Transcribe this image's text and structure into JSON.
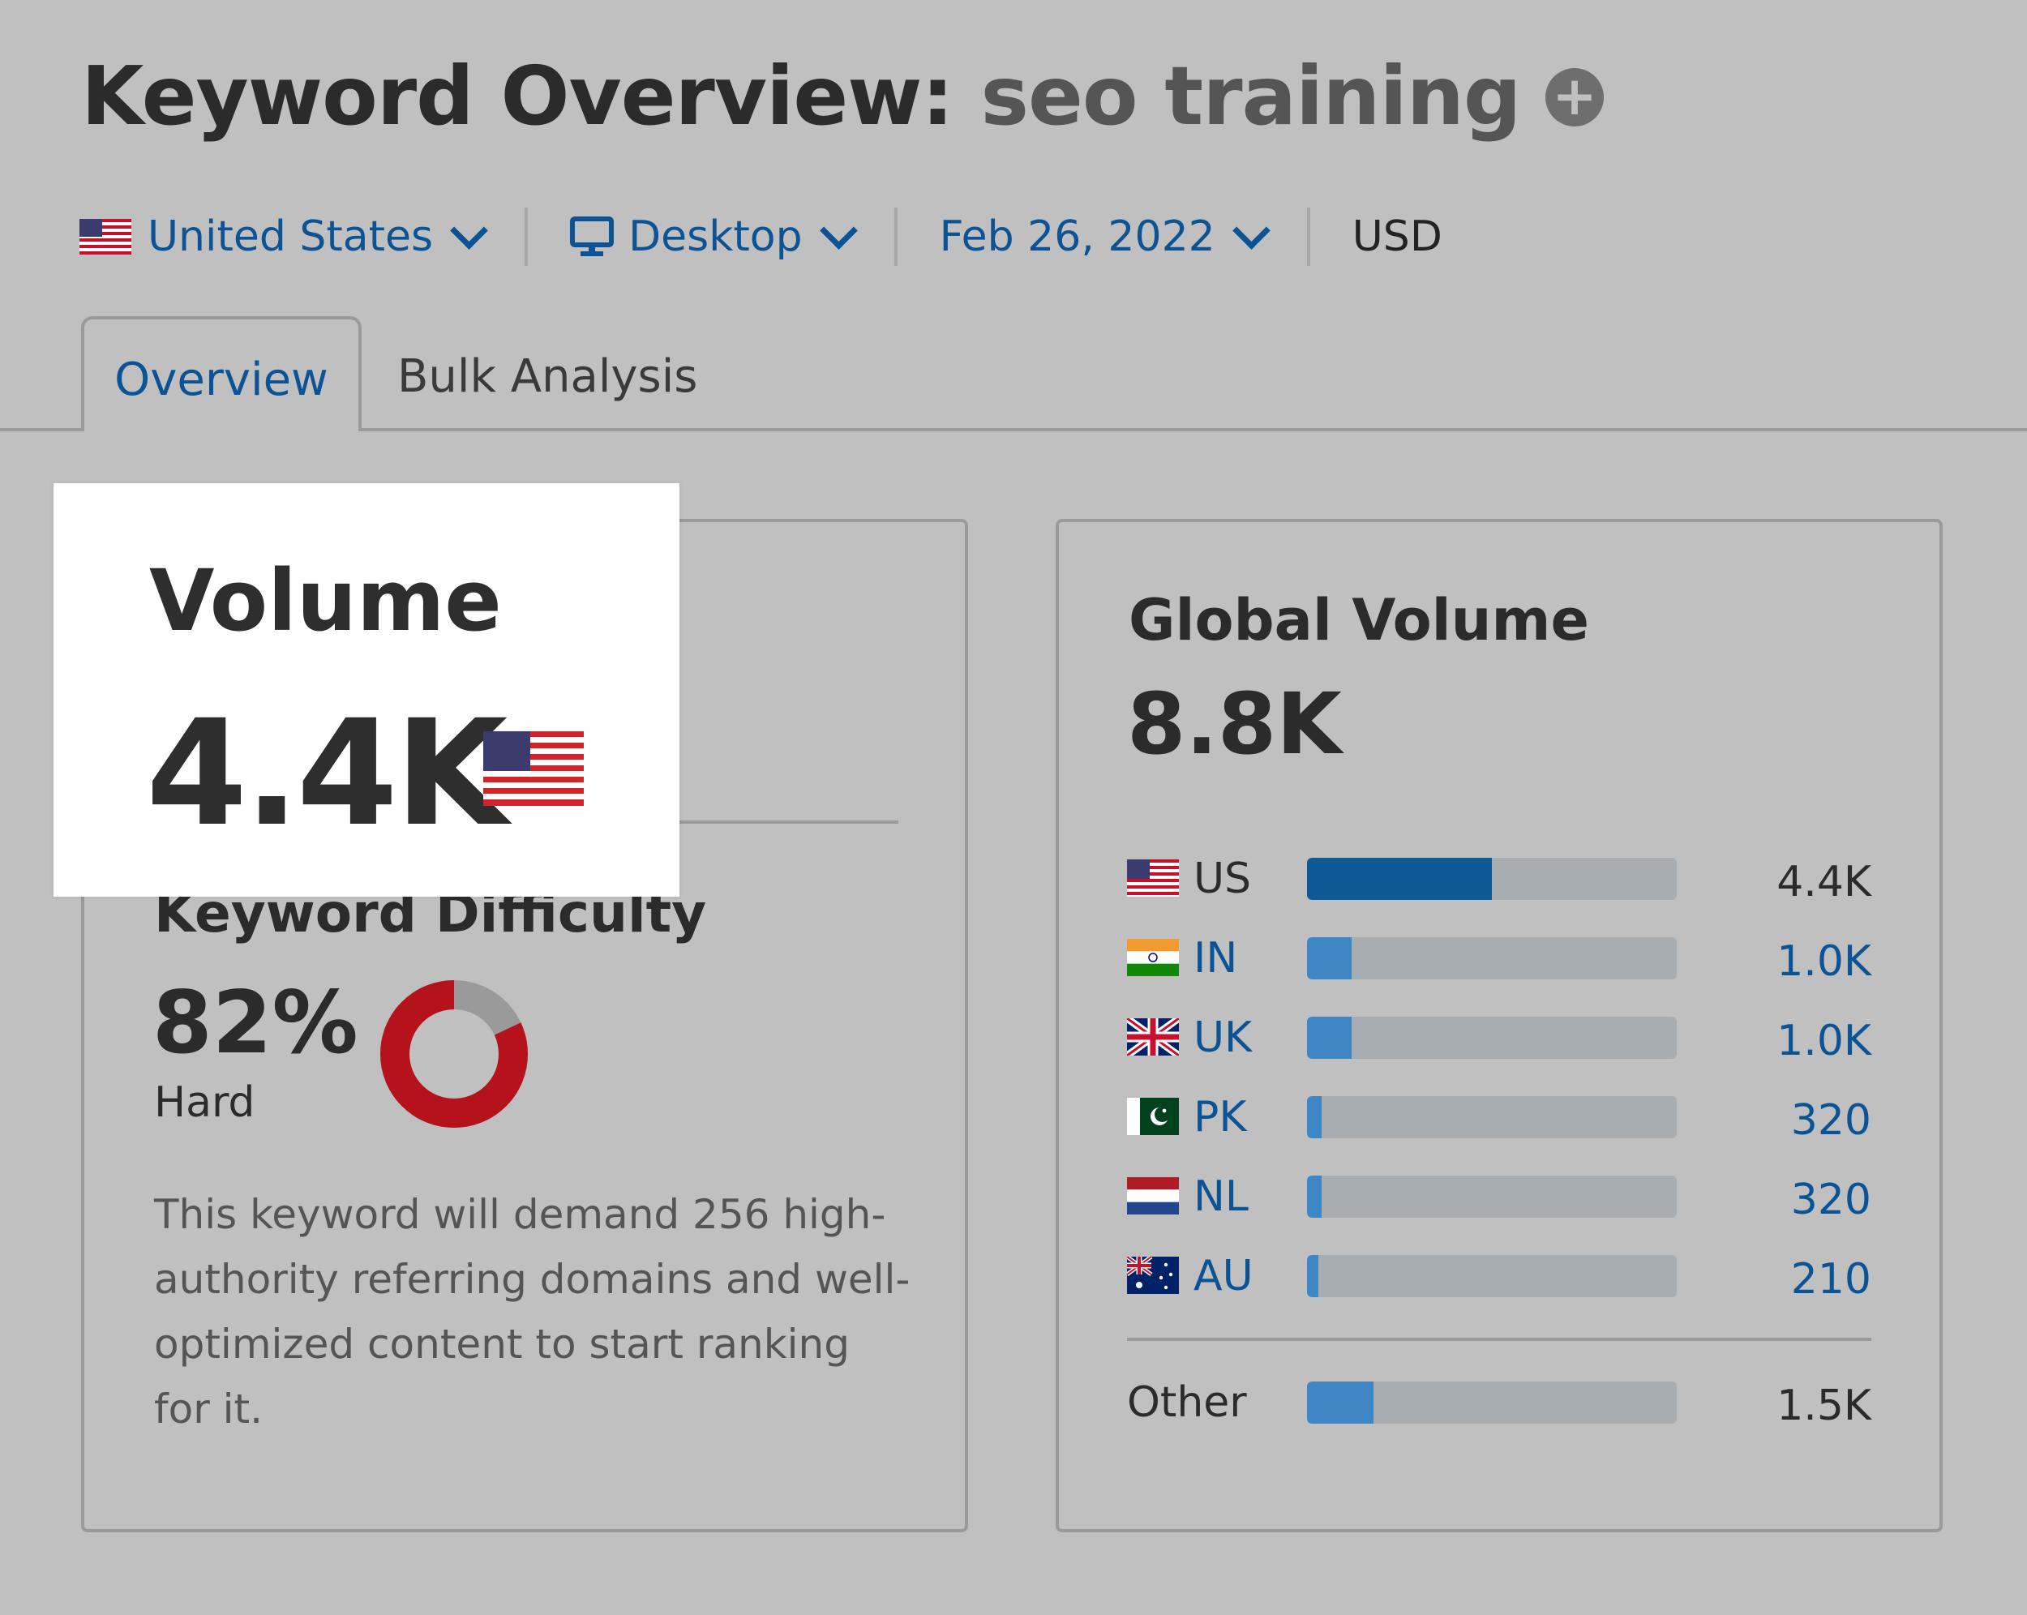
{
  "header": {
    "title_prefix": "Keyword Overview:",
    "keyword": "seo training",
    "add_icon": "plus-circle-icon"
  },
  "filters": {
    "country": "United States",
    "device": "Desktop",
    "date": "Feb 26, 2022",
    "currency": "USD"
  },
  "tabs": [
    {
      "label": "Overview",
      "active": true
    },
    {
      "label": "Bulk Analysis",
      "active": false
    }
  ],
  "volume": {
    "label": "Volume",
    "value": "4.4K"
  },
  "keyword_difficulty": {
    "title": "Keyword Difficulty",
    "percent": "82%",
    "percent_value": 82,
    "level": "Hard",
    "description": "This keyword will demand 256 high-authority referring domains and well-optimized content to start ranking for it.",
    "color": "#b5121b"
  },
  "global_volume": {
    "title": "Global Volume",
    "value": "8.8K",
    "countries": [
      {
        "code": "US",
        "value": "4.4K",
        "share": 0.5
      },
      {
        "code": "IN",
        "value": "1.0K",
        "share": 0.12
      },
      {
        "code": "UK",
        "value": "1.0K",
        "share": 0.12
      },
      {
        "code": "PK",
        "value": "320",
        "share": 0.04
      },
      {
        "code": "NL",
        "value": "320",
        "share": 0.04
      },
      {
        "code": "AU",
        "value": "210",
        "share": 0.03
      }
    ],
    "other": {
      "label": "Other",
      "value": "1.5K",
      "share": 0.18
    }
  },
  "colors": {
    "link": "#0b5394",
    "bar_primary": "#0e5896",
    "bar_secondary": "#3f86c4",
    "track": "#a8adb1",
    "background": "#c0c0c0"
  }
}
